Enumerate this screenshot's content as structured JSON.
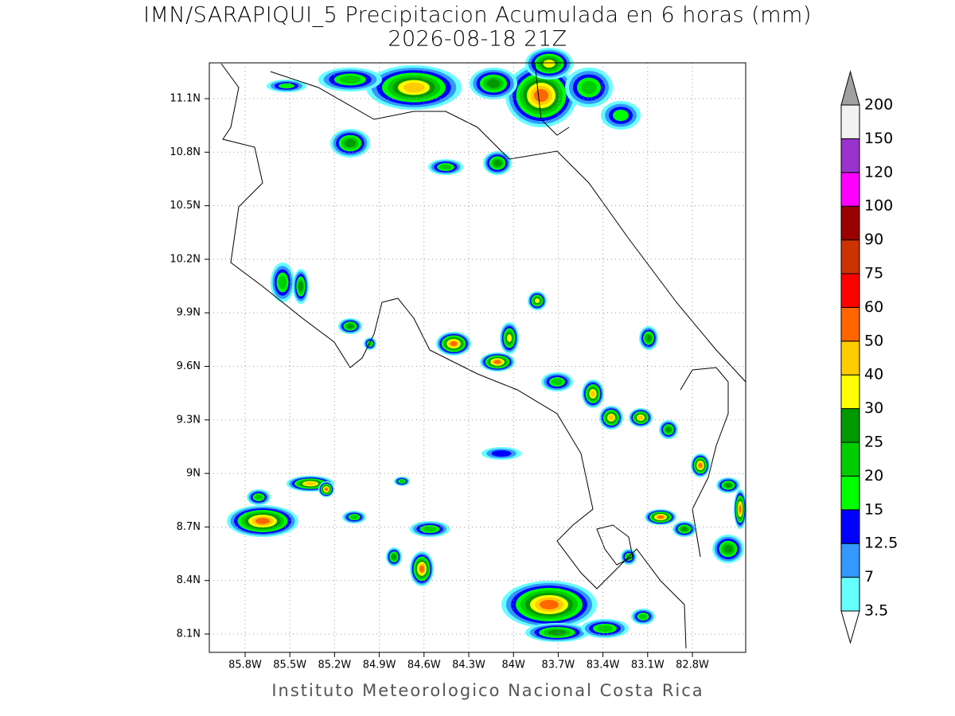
{
  "header": {
    "title": "IMN/SARAPIQUI_5 Precipitacion Acumulada en 6 horas (mm)",
    "subtitle": "2026-08-18 21Z"
  },
  "map": {
    "x_ticks": [
      "85.8W",
      "85.5W",
      "85.2W",
      "84.9W",
      "84.6W",
      "84.3W",
      "84W",
      "83.7W",
      "83.4W",
      "83.1W",
      "82.8W"
    ],
    "y_ticks": [
      "11.1N",
      "10.8N",
      "10.5N",
      "10.2N",
      "9.9N",
      "9.6N",
      "9.3N",
      "9N",
      "8.7N",
      "8.4N",
      "8.1N"
    ]
  },
  "legend": {
    "labels": [
      "3.5",
      "7",
      "12.5",
      "15",
      "20",
      "25",
      "30",
      "40",
      "50",
      "60",
      "75",
      "90",
      "100",
      "120",
      "150",
      "200"
    ],
    "colors": [
      "#ffffff",
      "#66ffff",
      "#3399ff",
      "#0000ff",
      "#00ff00",
      "#00cc00",
      "#009900",
      "#ffff00",
      "#ffcc00",
      "#ff6600",
      "#ff0000",
      "#cc3300",
      "#990000",
      "#ff00ff",
      "#9933cc",
      "#f2f2f2",
      "#a0a0a0"
    ]
  },
  "footer": "Instituto Meteorologico Nacional Costa Rica"
}
